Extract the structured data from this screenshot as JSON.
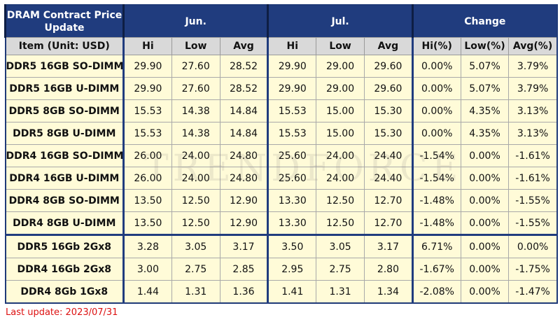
{
  "table": {
    "title": "DRAM Contract Price Update",
    "groups": [
      "Jun.",
      "Jul.",
      "Change"
    ],
    "columns": [
      "Item (Unit: USD)",
      "Hi",
      "Low",
      "Avg",
      "Hi",
      "Low",
      "Avg",
      "Hi(%)",
      "Low(%)",
      "Avg(%)"
    ],
    "rows": [
      [
        "DDR5 16GB SO-DIMM",
        "29.90",
        "27.60",
        "28.52",
        "29.90",
        "29.00",
        "29.60",
        "0.00%",
        "5.07%",
        "3.79%"
      ],
      [
        "DDR5 16GB U-DIMM",
        "29.90",
        "27.60",
        "28.52",
        "29.90",
        "29.00",
        "29.60",
        "0.00%",
        "5.07%",
        "3.79%"
      ],
      [
        "DDR5 8GB SO-DIMM",
        "15.53",
        "14.38",
        "14.84",
        "15.53",
        "15.00",
        "15.30",
        "0.00%",
        "4.35%",
        "3.13%"
      ],
      [
        "DDR5 8GB U-DIMM",
        "15.53",
        "14.38",
        "14.84",
        "15.53",
        "15.00",
        "15.30",
        "0.00%",
        "4.35%",
        "3.13%"
      ],
      [
        "DDR4 16GB SO-DIMM",
        "26.00",
        "24.00",
        "24.80",
        "25.60",
        "24.00",
        "24.40",
        "-1.54%",
        "0.00%",
        "-1.61%"
      ],
      [
        "DDR4 16GB U-DIMM",
        "26.00",
        "24.00",
        "24.80",
        "25.60",
        "24.00",
        "24.40",
        "-1.54%",
        "0.00%",
        "-1.61%"
      ],
      [
        "DDR4 8GB SO-DIMM",
        "13.50",
        "12.50",
        "12.90",
        "13.30",
        "12.50",
        "12.70",
        "-1.48%",
        "0.00%",
        "-1.55%"
      ],
      [
        "DDR4 8GB U-DIMM",
        "13.50",
        "12.50",
        "12.90",
        "13.30",
        "12.50",
        "12.70",
        "-1.48%",
        "0.00%",
        "-1.55%"
      ],
      [
        "DDR5 16Gb 2Gx8",
        "3.28",
        "3.05",
        "3.17",
        "3.50",
        "3.05",
        "3.17",
        "6.71%",
        "0.00%",
        "0.00%"
      ],
      [
        "DDR4 16Gb 2Gx8",
        "3.00",
        "2.75",
        "2.85",
        "2.95",
        "2.75",
        "2.80",
        "-1.67%",
        "0.00%",
        "-1.75%"
      ],
      [
        "DDR4 8Gb 1Gx8",
        "1.44",
        "1.31",
        "1.36",
        "1.41",
        "1.31",
        "1.34",
        "-2.08%",
        "0.00%",
        "-1.47%"
      ]
    ]
  },
  "watermark": "TRENDFORCE",
  "footer": "Last update: 2023/07/31"
}
